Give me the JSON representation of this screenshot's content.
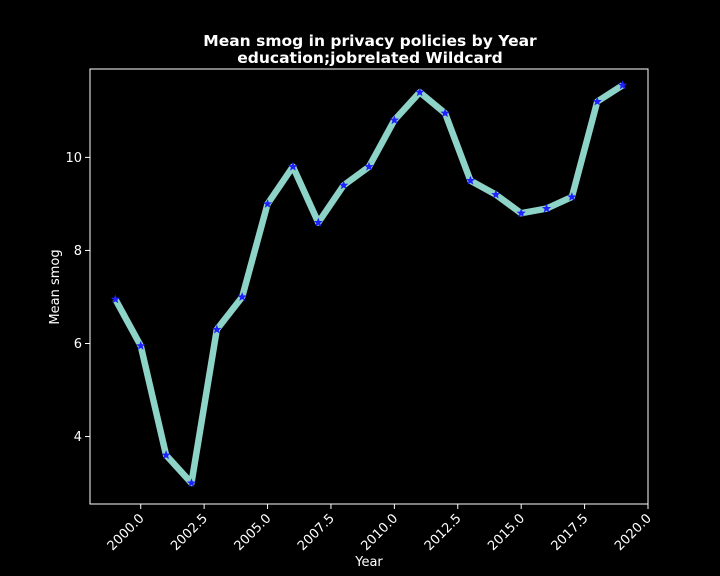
{
  "chart_data": {
    "type": "line",
    "title_line1": "Mean smog in privacy policies by Year",
    "title_line2": "education;jobrelated Wildcard",
    "xlabel": "Year",
    "ylabel": "Mean smog",
    "xlim": [
      1998.0,
      2020.0
    ],
    "ylim": [
      2.55,
      11.9
    ],
    "xticks": [
      2000.0,
      2002.5,
      2005.0,
      2007.5,
      2010.0,
      2012.5,
      2015.0,
      2017.5,
      2020.0
    ],
    "xtick_labels": [
      "2000.0",
      "2002.5",
      "2005.0",
      "2007.5",
      "2010.0",
      "2012.5",
      "2015.0",
      "2017.5",
      "2020.0"
    ],
    "yticks": [
      4,
      6,
      8,
      10
    ],
    "ytick_labels": [
      "4",
      "6",
      "8",
      "10"
    ],
    "grid": false,
    "colors": {
      "background": "#000000",
      "line": "#8dd3c7",
      "marker": "#1f1fff",
      "text": "#ffffff",
      "axes": "#ffffff"
    },
    "series": [
      {
        "x": [
          1999,
          2000,
          2001,
          2002,
          2003,
          2004,
          2005,
          2006,
          2007,
          2008,
          2009,
          2010,
          2011,
          2012,
          2013,
          2014,
          2015,
          2016,
          2017,
          2018,
          2019
        ],
        "values": [
          6.95,
          5.95,
          3.6,
          3.0,
          6.3,
          7.0,
          9.0,
          9.8,
          8.6,
          9.4,
          9.8,
          10.8,
          11.4,
          10.95,
          9.5,
          9.2,
          8.8,
          8.9,
          9.15,
          11.2,
          11.55
        ]
      }
    ]
  }
}
